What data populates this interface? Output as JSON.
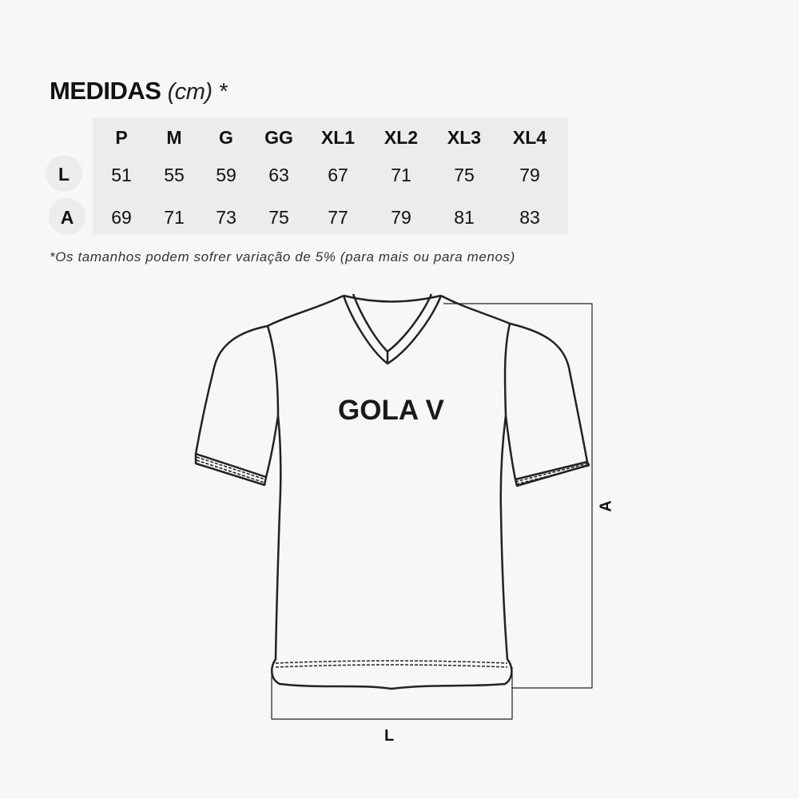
{
  "title": {
    "main": "MEDIDAS",
    "unit": "(cm) *"
  },
  "table": {
    "sizes": [
      "P",
      "M",
      "G",
      "GG",
      "XL1",
      "XL2",
      "XL3",
      "XL4"
    ],
    "rows": [
      {
        "label": "L",
        "values": [
          "51",
          "55",
          "59",
          "63",
          "67",
          "71",
          "75",
          "79"
        ]
      },
      {
        "label": "A",
        "values": [
          "69",
          "71",
          "73",
          "75",
          "77",
          "79",
          "81",
          "83"
        ]
      }
    ]
  },
  "note": "*Os tamanhos podem sofrer variação de 5% (para mais ou para menos)",
  "diagram": {
    "shirt_label": "GOLA V",
    "height_label": "A",
    "width_label": "L"
  },
  "colors": {
    "background": "#f7f7f7",
    "table": "#ececec",
    "line": "#222222"
  }
}
